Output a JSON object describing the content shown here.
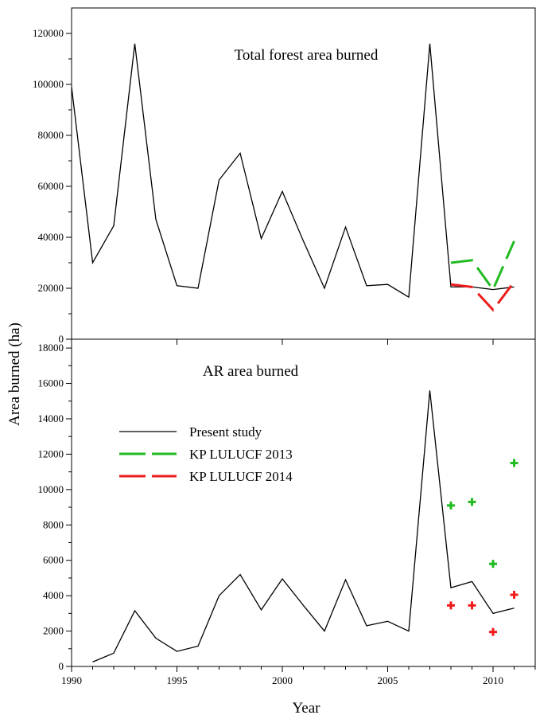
{
  "chart_data": [
    {
      "type": "line",
      "title": "Total forest area burned",
      "xlim": [
        1990,
        2012
      ],
      "ylim": [
        0,
        130000
      ],
      "yticks": [
        0,
        20000,
        40000,
        60000,
        80000,
        100000,
        120000
      ],
      "series": [
        {
          "name": "Present study",
          "color": "#000000",
          "style": "solid",
          "x": [
            1990,
            1991,
            1992,
            1993,
            1994,
            1995,
            1996,
            1997,
            1998,
            1999,
            2000,
            2001,
            2002,
            2003,
            2004,
            2005,
            2006,
            2007,
            2008,
            2009,
            2010,
            2011
          ],
          "y": [
            99000,
            30000,
            44500,
            116000,
            47000,
            21000,
            20000,
            62500,
            73000,
            39500,
            58000,
            38500,
            20000,
            44000,
            21000,
            21500,
            16500,
            116000,
            20500,
            20500,
            19500,
            20500
          ]
        },
        {
          "name": "KP LULUCF 2013",
          "color": "#22bb22",
          "style": "dashed",
          "x": [
            2008,
            2009,
            2010,
            2011
          ],
          "y": [
            30000,
            31000,
            19500,
            38500
          ]
        },
        {
          "name": "KP LULUCF 2014",
          "color": "#ee1c1c",
          "style": "dashed",
          "x": [
            2008,
            2009,
            2010,
            2011
          ],
          "y": [
            21500,
            20500,
            11500,
            22500
          ]
        }
      ]
    },
    {
      "type": "line",
      "title": "AR area burned",
      "xlim": [
        1990,
        2012
      ],
      "ylim": [
        0,
        18500
      ],
      "yticks": [
        0,
        2000,
        4000,
        6000,
        8000,
        10000,
        12000,
        14000,
        16000,
        18000
      ],
      "series": [
        {
          "name": "Present study",
          "color": "#000000",
          "style": "solid",
          "x": [
            1991,
            1992,
            1993,
            1994,
            1995,
            1996,
            1997,
            1998,
            1999,
            2000,
            2001,
            2002,
            2003,
            2004,
            2005,
            2006,
            2007,
            2008,
            2009,
            2010,
            2011
          ],
          "y": [
            250,
            750,
            3150,
            1600,
            850,
            1150,
            4000,
            5200,
            3200,
            4950,
            3450,
            2000,
            4900,
            2300,
            2550,
            2000,
            15600,
            4450,
            4800,
            3000,
            3300
          ]
        },
        {
          "name": "KP LULUCF 2013",
          "color": "#22bb22",
          "style": "markers",
          "x": [
            2008,
            2009,
            2010,
            2011
          ],
          "y": [
            9100,
            9300,
            5800,
            11500
          ]
        },
        {
          "name": "KP LULUCF 2014",
          "color": "#ee1c1c",
          "style": "markers",
          "x": [
            2008,
            2009,
            2010,
            2011
          ],
          "y": [
            3450,
            3450,
            1950,
            4050
          ]
        }
      ]
    }
  ],
  "xticks": [
    1990,
    1995,
    2000,
    2005,
    2010
  ],
  "xlabel": "Year",
  "ylabel": "Area burned (ha)",
  "legend": [
    {
      "name": "Present study",
      "color": "#000000",
      "style": "solid"
    },
    {
      "name": "KP LULUCF 2013",
      "color": "#22bb22",
      "style": "dashed"
    },
    {
      "name": "KP LULUCF 2014",
      "color": "#ee1c1c",
      "style": "dashed"
    }
  ]
}
